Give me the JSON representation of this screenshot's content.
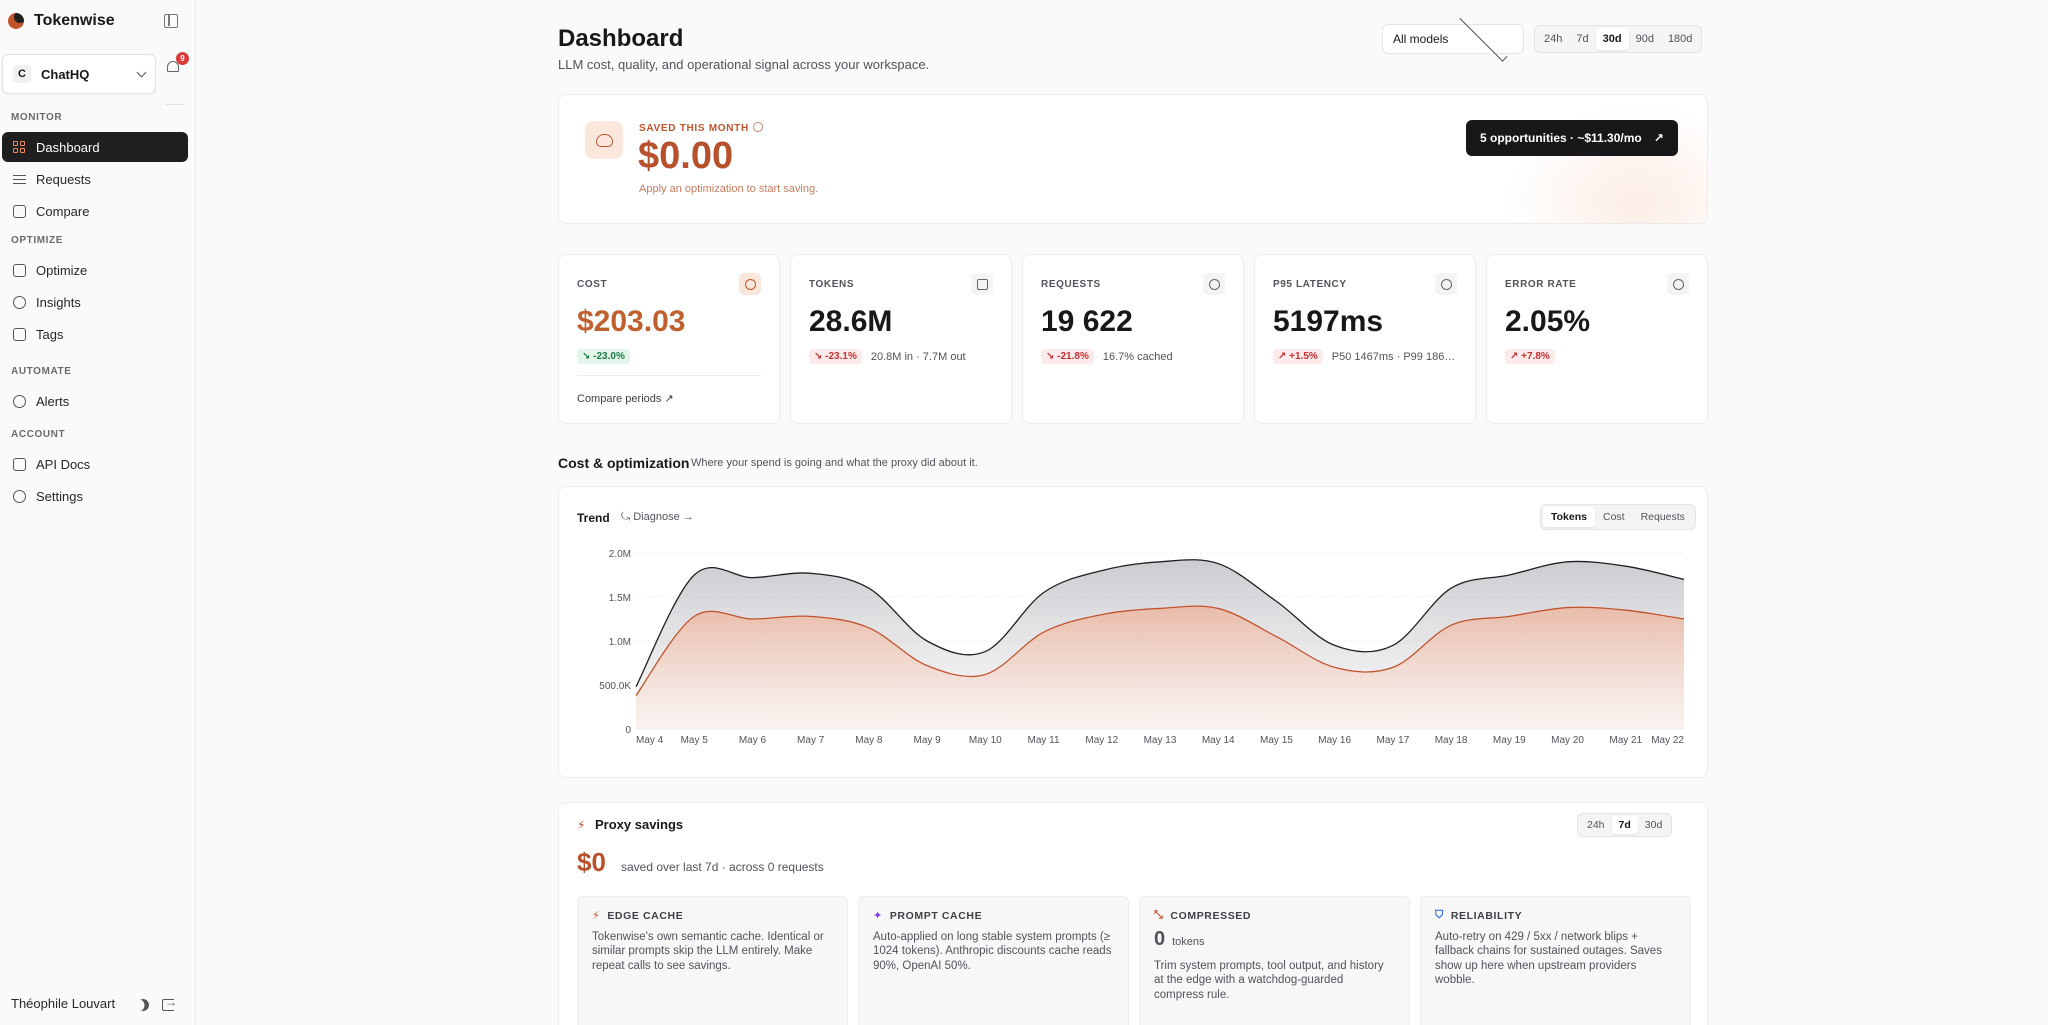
{
  "app": {
    "name": "Tokenwise"
  },
  "workspace": {
    "initial": "C",
    "name": "ChatHQ",
    "notifications": "9"
  },
  "nav": {
    "sections": [
      {
        "title": "MONITOR",
        "items": [
          "Dashboard",
          "Requests",
          "Compare"
        ]
      },
      {
        "title": "OPTIMIZE",
        "items": [
          "Optimize",
          "Insights",
          "Tags"
        ]
      },
      {
        "title": "AUTOMATE",
        "items": [
          "Alerts"
        ]
      },
      {
        "title": "ACCOUNT",
        "items": [
          "API Docs",
          "Settings"
        ]
      }
    ],
    "active": "Dashboard"
  },
  "user": {
    "name": "Théophile Louvart"
  },
  "header": {
    "title": "Dashboard",
    "subtitle": "LLM cost, quality, and operational signal across your workspace.",
    "model_filter": "All models",
    "ranges": [
      "24h",
      "7d",
      "30d",
      "90d",
      "180d"
    ],
    "active_range": "30d"
  },
  "savings_banner": {
    "label": "SAVED THIS MONTH",
    "amount": "$0.00",
    "hint": "Apply an optimization to start saving.",
    "cta": "5 opportunities · ~$11.30/mo",
    "cta_icon": "arrow-up-right-icon"
  },
  "kpis": [
    {
      "key": "cost",
      "label": "COST",
      "value": "$203.03",
      "delta": "-23.0%",
      "delta_dir": "down",
      "delta_tone": "good",
      "detail": "",
      "link": "Compare periods ↗",
      "icon": "dollar-icon",
      "accent": true
    },
    {
      "key": "tokens",
      "label": "TOKENS",
      "value": "28.6M",
      "delta": "-23.1%",
      "delta_dir": "down",
      "delta_tone": "bad",
      "detail": "20.8M in · 7.7M out",
      "icon": "chip-icon"
    },
    {
      "key": "requests",
      "label": "REQUESTS",
      "value": "19 622",
      "delta": "-21.8%",
      "delta_dir": "down",
      "delta_tone": "bad",
      "detail": "16.7% cached",
      "icon": "activity-icon"
    },
    {
      "key": "latency",
      "label": "P95 LATENCY",
      "value": "5197ms",
      "delta": "+1.5%",
      "delta_dir": "up",
      "delta_tone": "bad",
      "detail": "P50 1467ms · P99 186…",
      "icon": "timer-icon"
    },
    {
      "key": "errors",
      "label": "ERROR RATE",
      "value": "2.05%",
      "delta": "+7.8%",
      "delta_dir": "up",
      "delta_tone": "bad",
      "detail": "",
      "icon": "alert-circle-icon"
    }
  ],
  "cost_section": {
    "title": "Cost & optimization",
    "subtitle": "Where your spend is going and what the proxy did about it."
  },
  "trend": {
    "title": "Trend",
    "diagnose": "Diagnose →",
    "tabs": [
      "Tokens",
      "Cost",
      "Requests"
    ],
    "active_tab": "Tokens"
  },
  "chart_data": {
    "type": "area",
    "x": [
      "May 4",
      "May 5",
      "May 6",
      "May 7",
      "May 8",
      "May 9",
      "May 10",
      "May 11",
      "May 12",
      "May 13",
      "May 14",
      "May 15",
      "May 16",
      "May 17",
      "May 18",
      "May 19",
      "May 20",
      "May 21",
      "May 22"
    ],
    "yticks": [
      "0",
      "500.0K",
      "1.0M",
      "1.5M",
      "2.0M"
    ],
    "ylim": [
      0,
      2000000
    ],
    "series": [
      {
        "values": [
          480000,
          1750000,
          1720000,
          1770000,
          1600000,
          1000000,
          880000,
          1550000,
          1800000,
          1900000,
          1880000,
          1450000,
          950000,
          950000,
          1600000,
          1750000,
          1900000,
          1850000,
          1700000
        ],
        "color": "#1f1f1f"
      },
      {
        "values": [
          380000,
          1280000,
          1250000,
          1280000,
          1150000,
          720000,
          620000,
          1100000,
          1300000,
          1370000,
          1370000,
          1050000,
          700000,
          700000,
          1180000,
          1280000,
          1380000,
          1350000,
          1250000
        ],
        "color": "#c2542d"
      }
    ],
    "grid": true
  },
  "proxy": {
    "title": "Proxy savings",
    "amount": "$0",
    "subtitle": "saved over last 7d · across 0 requests",
    "ranges": [
      "24h",
      "7d",
      "30d"
    ],
    "active_range": "7d",
    "tiles": [
      {
        "title": "EDGE CACHE",
        "icon": "zap-icon",
        "color": "#c2542d",
        "desc": "Tokenwise's own semantic cache. Identical or similar prompts skip the LLM entirely. Make repeat calls to see savings."
      },
      {
        "title": "PROMPT CACHE",
        "icon": "sparkle-icon",
        "color": "#7c3aed",
        "desc": "Auto-applied on long stable system prompts (≥ 1024 tokens). Anthropic discounts cache reads 90%, OpenAI 50%."
      },
      {
        "title": "COMPRESSED",
        "icon": "compress-icon",
        "color": "#c2542d",
        "metric": "0",
        "metric_unit": "tokens",
        "desc": "Trim system prompts, tool output, and history at the edge with a watchdog-guarded compress rule."
      },
      {
        "title": "RELIABILITY",
        "icon": "shield-icon",
        "color": "#2563eb",
        "desc": "Auto-retry on 429 / 5xx / network blips + fallback chains for sustained outages. Saves show up here when upstream providers wobble."
      }
    ]
  }
}
